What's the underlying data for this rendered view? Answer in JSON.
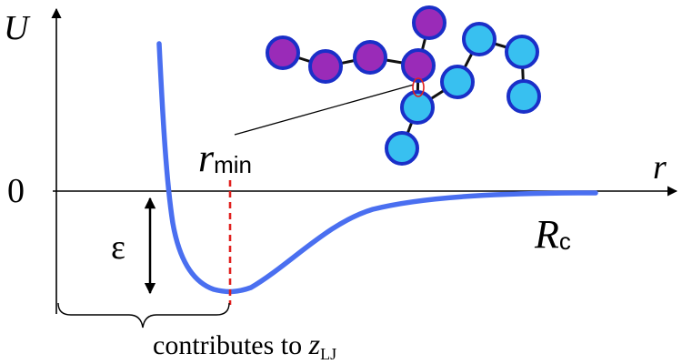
{
  "axes": {
    "y_label": "U",
    "x_label": "r",
    "zero_label": "0"
  },
  "annotations": {
    "epsilon": "ε",
    "r_min_base": "r",
    "r_min_sub": "min",
    "rc_base": "R",
    "rc_sub": "c",
    "contributes_text": "contributes to ",
    "z_base": "z",
    "z_sub": "LJ"
  },
  "colors": {
    "curve": "#4a6ff0",
    "rmin_line": "#e0201e",
    "purple_atom": "#9a2bb8",
    "blue_atom": "#38c0f0",
    "atom_outline": "#1a2fc8",
    "bond": "#111111",
    "axis": "#000000"
  }
}
